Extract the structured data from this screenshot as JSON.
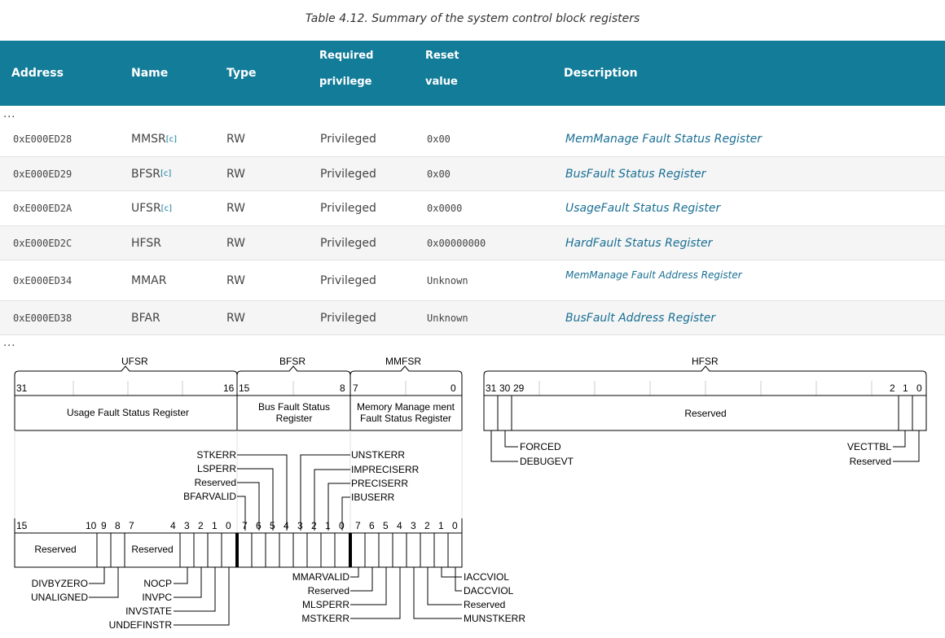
{
  "caption": "Table 4.12. Summary of the system control block registers",
  "headers": {
    "address": "Address",
    "name": "Name",
    "type": "Type",
    "privilege_line1": "Required",
    "privilege_line2": "privilege",
    "reset_line1": "Reset",
    "reset_line2": "value",
    "description": "Description"
  },
  "ellipsis": "...",
  "rows": [
    {
      "address": "0xE000ED28",
      "name": "MMSR",
      "note": "[c]",
      "type": "RW",
      "privilege": "Privileged",
      "reset": "0x00",
      "description": "MemManage Fault Status Register"
    },
    {
      "address": "0xE000ED29",
      "name": "BFSR",
      "note": "[c]",
      "type": "RW",
      "privilege": "Privileged",
      "reset": "0x00",
      "description": "BusFault Status Register"
    },
    {
      "address": "0xE000ED2A",
      "name": "UFSR",
      "note": "[c]",
      "type": "RW",
      "privilege": "Privileged",
      "reset": "0x0000",
      "description": "UsageFault Status Register"
    },
    {
      "address": "0xE000ED2C",
      "name": "HFSR",
      "note": "",
      "type": "RW",
      "privilege": "Privileged",
      "reset": "0x00000000",
      "description": "HardFault Status Register"
    },
    {
      "address": "0xE000ED34",
      "name": "MMAR",
      "note": "",
      "type": "RW",
      "privilege": "Privileged",
      "reset": "Unknown",
      "description": "MemManage Fault Address Register"
    },
    {
      "address": "0xE000ED38",
      "name": "BFAR",
      "note": "",
      "type": "RW",
      "privilege": "Privileged",
      "reset": "Unknown",
      "description": "BusFault Address Register"
    }
  ],
  "diagram": {
    "ufsr_label": "UFSR",
    "bfsr_label": "BFSR",
    "mmfsr_label": "MMFSR",
    "hfsr_label": "HFSR",
    "top_bits": {
      "b31": "31",
      "b16": "16",
      "b15": "15",
      "b8": "8",
      "b7": "7",
      "b0": "0"
    },
    "ufsr_box": "Usage Fault Status Register",
    "bfsr_box_1": "Bus Fault Status",
    "bfsr_box_2": "Register",
    "mmfsr_box_1": "Memory Manage ment",
    "mmfsr_box_2": "Fault Status Register",
    "bottom_bits": [
      "15",
      "10",
      "9",
      "8",
      "7",
      "4",
      "3",
      "2",
      "1",
      "0",
      "7",
      "6",
      "5",
      "4",
      "3",
      "2",
      "1",
      "0",
      "7",
      "6",
      "5",
      "4",
      "3",
      "2",
      "1",
      "0"
    ],
    "reserved": "Reserved",
    "bfsr_fields": [
      "STKERR",
      "LSPERR",
      "Reserved",
      "BFARVALID",
      "UNSTKERR",
      "IMPRECISERR",
      "PRECISERR",
      "IBUSERR"
    ],
    "ufsr_fields": [
      "DIVBYZERO",
      "UNALIGNED",
      "NOCP",
      "INVPC",
      "INVSTATE",
      "UNDEFINSTR"
    ],
    "mmfsr_fields": [
      "MMARVALID",
      "Reserved",
      "MLSPERR",
      "MSTKERR",
      "IACCVIOL",
      "DACCVIOL",
      "Reserved",
      "MUNSTKERR"
    ],
    "hfsr_bits": [
      "31",
      "30",
      "29",
      "2",
      "1",
      "0"
    ],
    "hfsr_fields": [
      "FORCED",
      "DEBUGEVT",
      "VECTTBL",
      "Reserved"
    ]
  }
}
